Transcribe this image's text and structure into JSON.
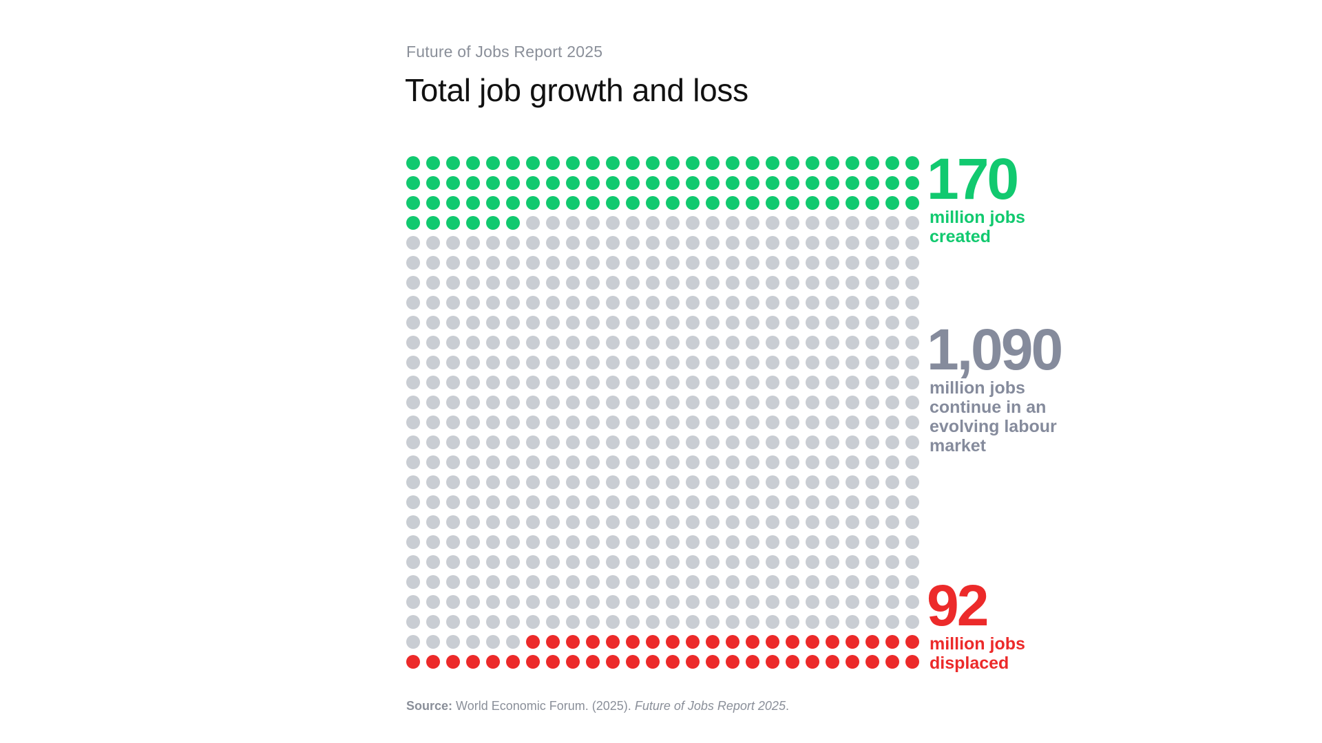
{
  "header": {
    "subtitle": "Future of Jobs Report 2025",
    "title": "Total job growth and loss"
  },
  "chart_data": {
    "type": "waffle",
    "title": "Total job growth and loss",
    "subtitle": "Future of Jobs Report 2025",
    "grid": {
      "columns": 26,
      "rows": 26
    },
    "series": [
      {
        "value": 170,
        "unit": "million jobs",
        "label": "million jobs\ncreated",
        "color": "#11c96f",
        "position": "top"
      },
      {
        "value": 1090,
        "unit": "million jobs",
        "label": "million jobs\ncontinue in an\nevolving labour\nmarket",
        "color": "#c9cdd3",
        "label_color": "#858b9c",
        "position": "middle"
      },
      {
        "value": 92,
        "unit": "million jobs",
        "label": "million jobs\ndisplaced",
        "color": "#ec2a2a",
        "position": "bottom"
      }
    ],
    "dot_counts": {
      "created": 84,
      "continuing": 518,
      "displaced": 46
    },
    "values_display": {
      "created": "170",
      "continuing": "1,090",
      "displaced": "92"
    }
  },
  "source": {
    "label": "Source:",
    "text": "World Economic Forum. (2025).",
    "italic": "Future of Jobs Report 2025",
    "end": "."
  }
}
